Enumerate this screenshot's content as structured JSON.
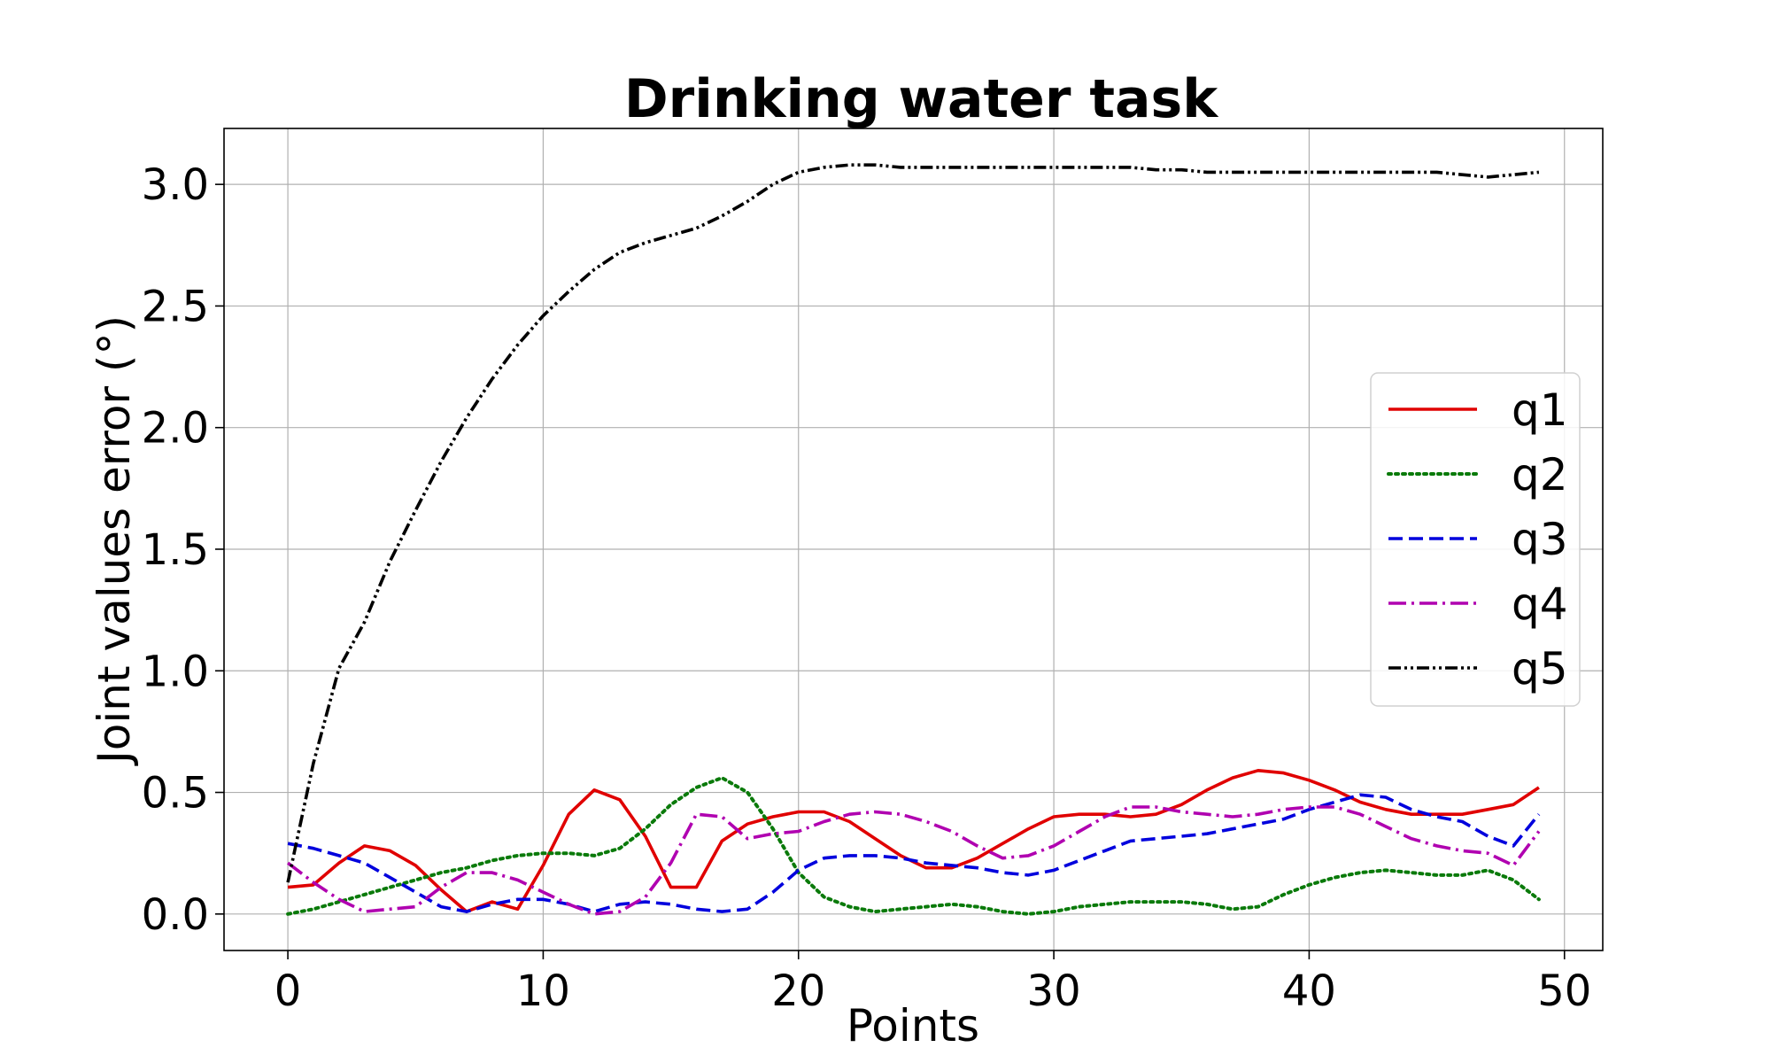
{
  "chart_data": {
    "type": "line",
    "title": "Drinking water task",
    "xlabel": "Points",
    "ylabel": "Joint values error (°)",
    "xlim": [
      -2.5,
      51.5
    ],
    "ylim": [
      -0.15,
      3.23
    ],
    "xticks": [
      0,
      10,
      20,
      30,
      40,
      50
    ],
    "xtick_labels": [
      "0",
      "10",
      "20",
      "30",
      "40",
      "50"
    ],
    "yticks": [
      0.0,
      0.5,
      1.0,
      1.5,
      2.0,
      2.5,
      3.0
    ],
    "ytick_labels": [
      "0.0",
      "0.5",
      "1.0",
      "1.5",
      "2.0",
      "2.5",
      "3.0"
    ],
    "grid": true,
    "legend_position": "center-right",
    "x": [
      0,
      1,
      2,
      3,
      4,
      5,
      6,
      7,
      8,
      9,
      10,
      11,
      12,
      13,
      14,
      15,
      16,
      17,
      18,
      19,
      20,
      21,
      22,
      23,
      24,
      25,
      26,
      27,
      28,
      29,
      30,
      31,
      32,
      33,
      34,
      35,
      36,
      37,
      38,
      39,
      40,
      41,
      42,
      43,
      44,
      45,
      46,
      47,
      48,
      49
    ],
    "series": [
      {
        "name": "q1",
        "color": "#e00000",
        "dash": "solid",
        "values": [
          0.11,
          0.12,
          0.21,
          0.28,
          0.26,
          0.2,
          0.1,
          0.01,
          0.05,
          0.02,
          0.2,
          0.41,
          0.51,
          0.47,
          0.32,
          0.11,
          0.11,
          0.3,
          0.37,
          0.4,
          0.42,
          0.42,
          0.38,
          0.31,
          0.24,
          0.19,
          0.19,
          0.23,
          0.29,
          0.35,
          0.4,
          0.41,
          0.41,
          0.4,
          0.41,
          0.45,
          0.51,
          0.56,
          0.59,
          0.58,
          0.55,
          0.51,
          0.46,
          0.43,
          0.41,
          0.41,
          0.41,
          0.43,
          0.45,
          0.52
        ]
      },
      {
        "name": "q2",
        "color": "#0a7a0a",
        "dash": "dotted",
        "values": [
          0.0,
          0.02,
          0.05,
          0.08,
          0.11,
          0.14,
          0.17,
          0.19,
          0.22,
          0.24,
          0.25,
          0.25,
          0.24,
          0.27,
          0.35,
          0.45,
          0.52,
          0.56,
          0.5,
          0.35,
          0.17,
          0.07,
          0.03,
          0.01,
          0.02,
          0.03,
          0.04,
          0.03,
          0.01,
          0.0,
          0.01,
          0.03,
          0.04,
          0.05,
          0.05,
          0.05,
          0.04,
          0.02,
          0.03,
          0.08,
          0.12,
          0.15,
          0.17,
          0.18,
          0.17,
          0.16,
          0.16,
          0.18,
          0.14,
          0.06
        ]
      },
      {
        "name": "q3",
        "color": "#0000dd",
        "dash": "dashed",
        "values": [
          0.29,
          0.27,
          0.24,
          0.21,
          0.15,
          0.09,
          0.03,
          0.01,
          0.04,
          0.06,
          0.06,
          0.04,
          0.01,
          0.04,
          0.05,
          0.04,
          0.02,
          0.01,
          0.02,
          0.09,
          0.18,
          0.23,
          0.24,
          0.24,
          0.23,
          0.21,
          0.2,
          0.19,
          0.17,
          0.16,
          0.18,
          0.22,
          0.26,
          0.3,
          0.31,
          0.32,
          0.33,
          0.35,
          0.37,
          0.39,
          0.43,
          0.46,
          0.49,
          0.48,
          0.43,
          0.4,
          0.38,
          0.32,
          0.28,
          0.41
        ]
      },
      {
        "name": "q4",
        "color": "#b000b0",
        "dash": "dashdot",
        "values": [
          0.21,
          0.13,
          0.06,
          0.01,
          0.02,
          0.03,
          0.11,
          0.17,
          0.17,
          0.14,
          0.09,
          0.04,
          0.0,
          0.01,
          0.07,
          0.21,
          0.41,
          0.4,
          0.31,
          0.33,
          0.34,
          0.38,
          0.41,
          0.42,
          0.41,
          0.38,
          0.34,
          0.28,
          0.23,
          0.24,
          0.28,
          0.34,
          0.4,
          0.44,
          0.44,
          0.42,
          0.41,
          0.4,
          0.41,
          0.43,
          0.44,
          0.44,
          0.41,
          0.36,
          0.31,
          0.28,
          0.26,
          0.25,
          0.2,
          0.34
        ]
      },
      {
        "name": "q5",
        "color": "#000000",
        "dash": "dashdotdot",
        "values": [
          0.13,
          0.62,
          1.01,
          1.2,
          1.45,
          1.66,
          1.86,
          2.04,
          2.2,
          2.34,
          2.46,
          2.56,
          2.65,
          2.72,
          2.76,
          2.79,
          2.82,
          2.87,
          2.93,
          3.0,
          3.05,
          3.07,
          3.08,
          3.08,
          3.07,
          3.07,
          3.07,
          3.07,
          3.07,
          3.07,
          3.07,
          3.07,
          3.07,
          3.07,
          3.06,
          3.06,
          3.05,
          3.05,
          3.05,
          3.05,
          3.05,
          3.05,
          3.05,
          3.05,
          3.05,
          3.05,
          3.04,
          3.03,
          3.04,
          3.05
        ]
      }
    ]
  }
}
